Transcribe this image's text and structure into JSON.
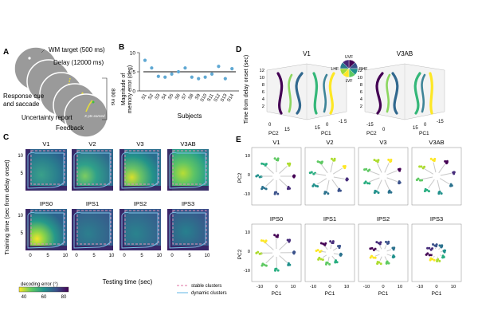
{
  "panels": {
    "A": {
      "letter": "A",
      "labels": {
        "wm_target": "WM target (500 ms)",
        "delay": "Delay (12000 ms)",
        "response": "Response cue",
        "and_saccade": "and saccade",
        "uncertainty": "Uncertainty report",
        "feedback": "Feedback",
        "ms_label": "800 ms",
        "pts": "X pts earned"
      }
    },
    "B": {
      "letter": "B",
      "ylabel_line1": "Magnitude of",
      "ylabel_line2": "memory error (deg)",
      "xlabel": "Subjects",
      "yticks": [
        "10",
        "5",
        "0"
      ],
      "subjects": [
        "S1",
        "S2",
        "S3",
        "S4",
        "S5",
        "S6",
        "S7",
        "S8",
        "S9",
        "S10",
        "S11",
        "S12",
        "S13",
        "S14"
      ],
      "values": [
        8.0,
        6.0,
        3.8,
        3.6,
        4.4,
        5.0,
        6.0,
        3.6,
        3.2,
        3.6,
        4.4,
        6.4,
        3.2,
        5.8
      ],
      "mean_line": 5.0,
      "ylim": [
        0,
        10
      ],
      "color": "#5fa8d3"
    },
    "C": {
      "letter": "C",
      "ylabel": "Training time (sec from delay onset)",
      "xlabel": "Testing time (sec)",
      "rois": [
        "V1",
        "V2",
        "V3",
        "V3AB",
        "IPS0",
        "IPS1",
        "IPS2",
        "IPS3"
      ],
      "yticks": [
        "10",
        "5"
      ],
      "xticks": [
        "0",
        "5",
        "10"
      ],
      "colorbar_label": "decoding error (°)",
      "colorbar_ticks": [
        "40",
        "60",
        "80"
      ],
      "legend_stable": "stable clusters",
      "legend_dynamic": "dynamic clusters"
    },
    "D": {
      "letter": "D",
      "ylabel": "Time from delay onset (sec)",
      "rois": [
        "V1",
        "V3AB"
      ],
      "zticks": [
        "12",
        "10",
        "8",
        "6",
        "4",
        "2"
      ],
      "pc2_label": "PC2",
      "pc1_label": "PC1",
      "v1_left_ticks": [
        "0",
        "15"
      ],
      "v1_right_ticks": [
        "15",
        "0",
        "-1 5"
      ],
      "v3ab_left_ticks": [
        "-15",
        "0"
      ],
      "v3ab_right_ticks": [
        "15",
        "0",
        "-15"
      ],
      "quadrants": [
        "UVF",
        "RHF",
        "LVF",
        "LHF"
      ],
      "colors": [
        "#440154",
        "#31688e",
        "#35b779",
        "#fde725"
      ]
    },
    "E": {
      "letter": "E",
      "rois": [
        "V1",
        "V2",
        "V3",
        "V3AB",
        "IPS0",
        "IPS1",
        "IPS2",
        "IPS3"
      ],
      "ylabel": "PC2",
      "xlabel": "PC1",
      "xticks": [
        "-10",
        "0",
        "10"
      ],
      "yticks": [
        "10",
        "0",
        "-10"
      ]
    }
  }
}
